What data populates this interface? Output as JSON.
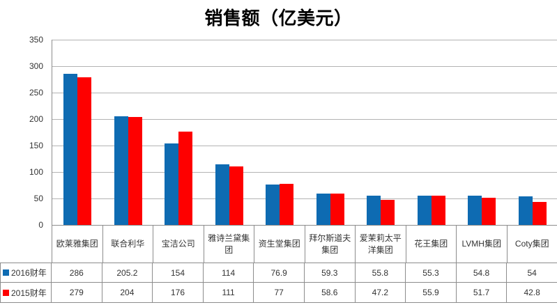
{
  "title": "销售额（亿美元）",
  "colors": {
    "series_2016": "#0e6bb2",
    "series_2015": "#fe0000",
    "gridline": "#b3b3b3",
    "axis_border": "#8c8c8c",
    "text": "#333333",
    "title_text": "#000000"
  },
  "chart_data": {
    "type": "bar",
    "title": "销售额（亿美元）",
    "categories": [
      "欧莱雅集团",
      "联合利华",
      "宝洁公司",
      "雅诗兰黛集团",
      "资生堂集团",
      "拜尔斯道夫集团",
      "爱茉莉太平洋集团",
      "花王集团",
      "LVMH集团",
      "Coty集团"
    ],
    "series": [
      {
        "name": "2016财年",
        "color": "#0e6bb2",
        "values": [
          286,
          205.2,
          154,
          114,
          76.9,
          59.3,
          55.8,
          55.3,
          54.8,
          54
        ]
      },
      {
        "name": "2015财年",
        "color": "#fe0000",
        "values": [
          279,
          204,
          176,
          111,
          77,
          58.6,
          47.2,
          55.9,
          51.7,
          42.8
        ]
      }
    ],
    "xlabel": "",
    "ylabel": "",
    "ylim": [
      0,
      350
    ],
    "yticks": [
      0,
      50,
      100,
      150,
      200,
      250,
      300,
      350
    ],
    "grid": true,
    "legend_position": "data-table-left",
    "data_table_shown": true
  }
}
